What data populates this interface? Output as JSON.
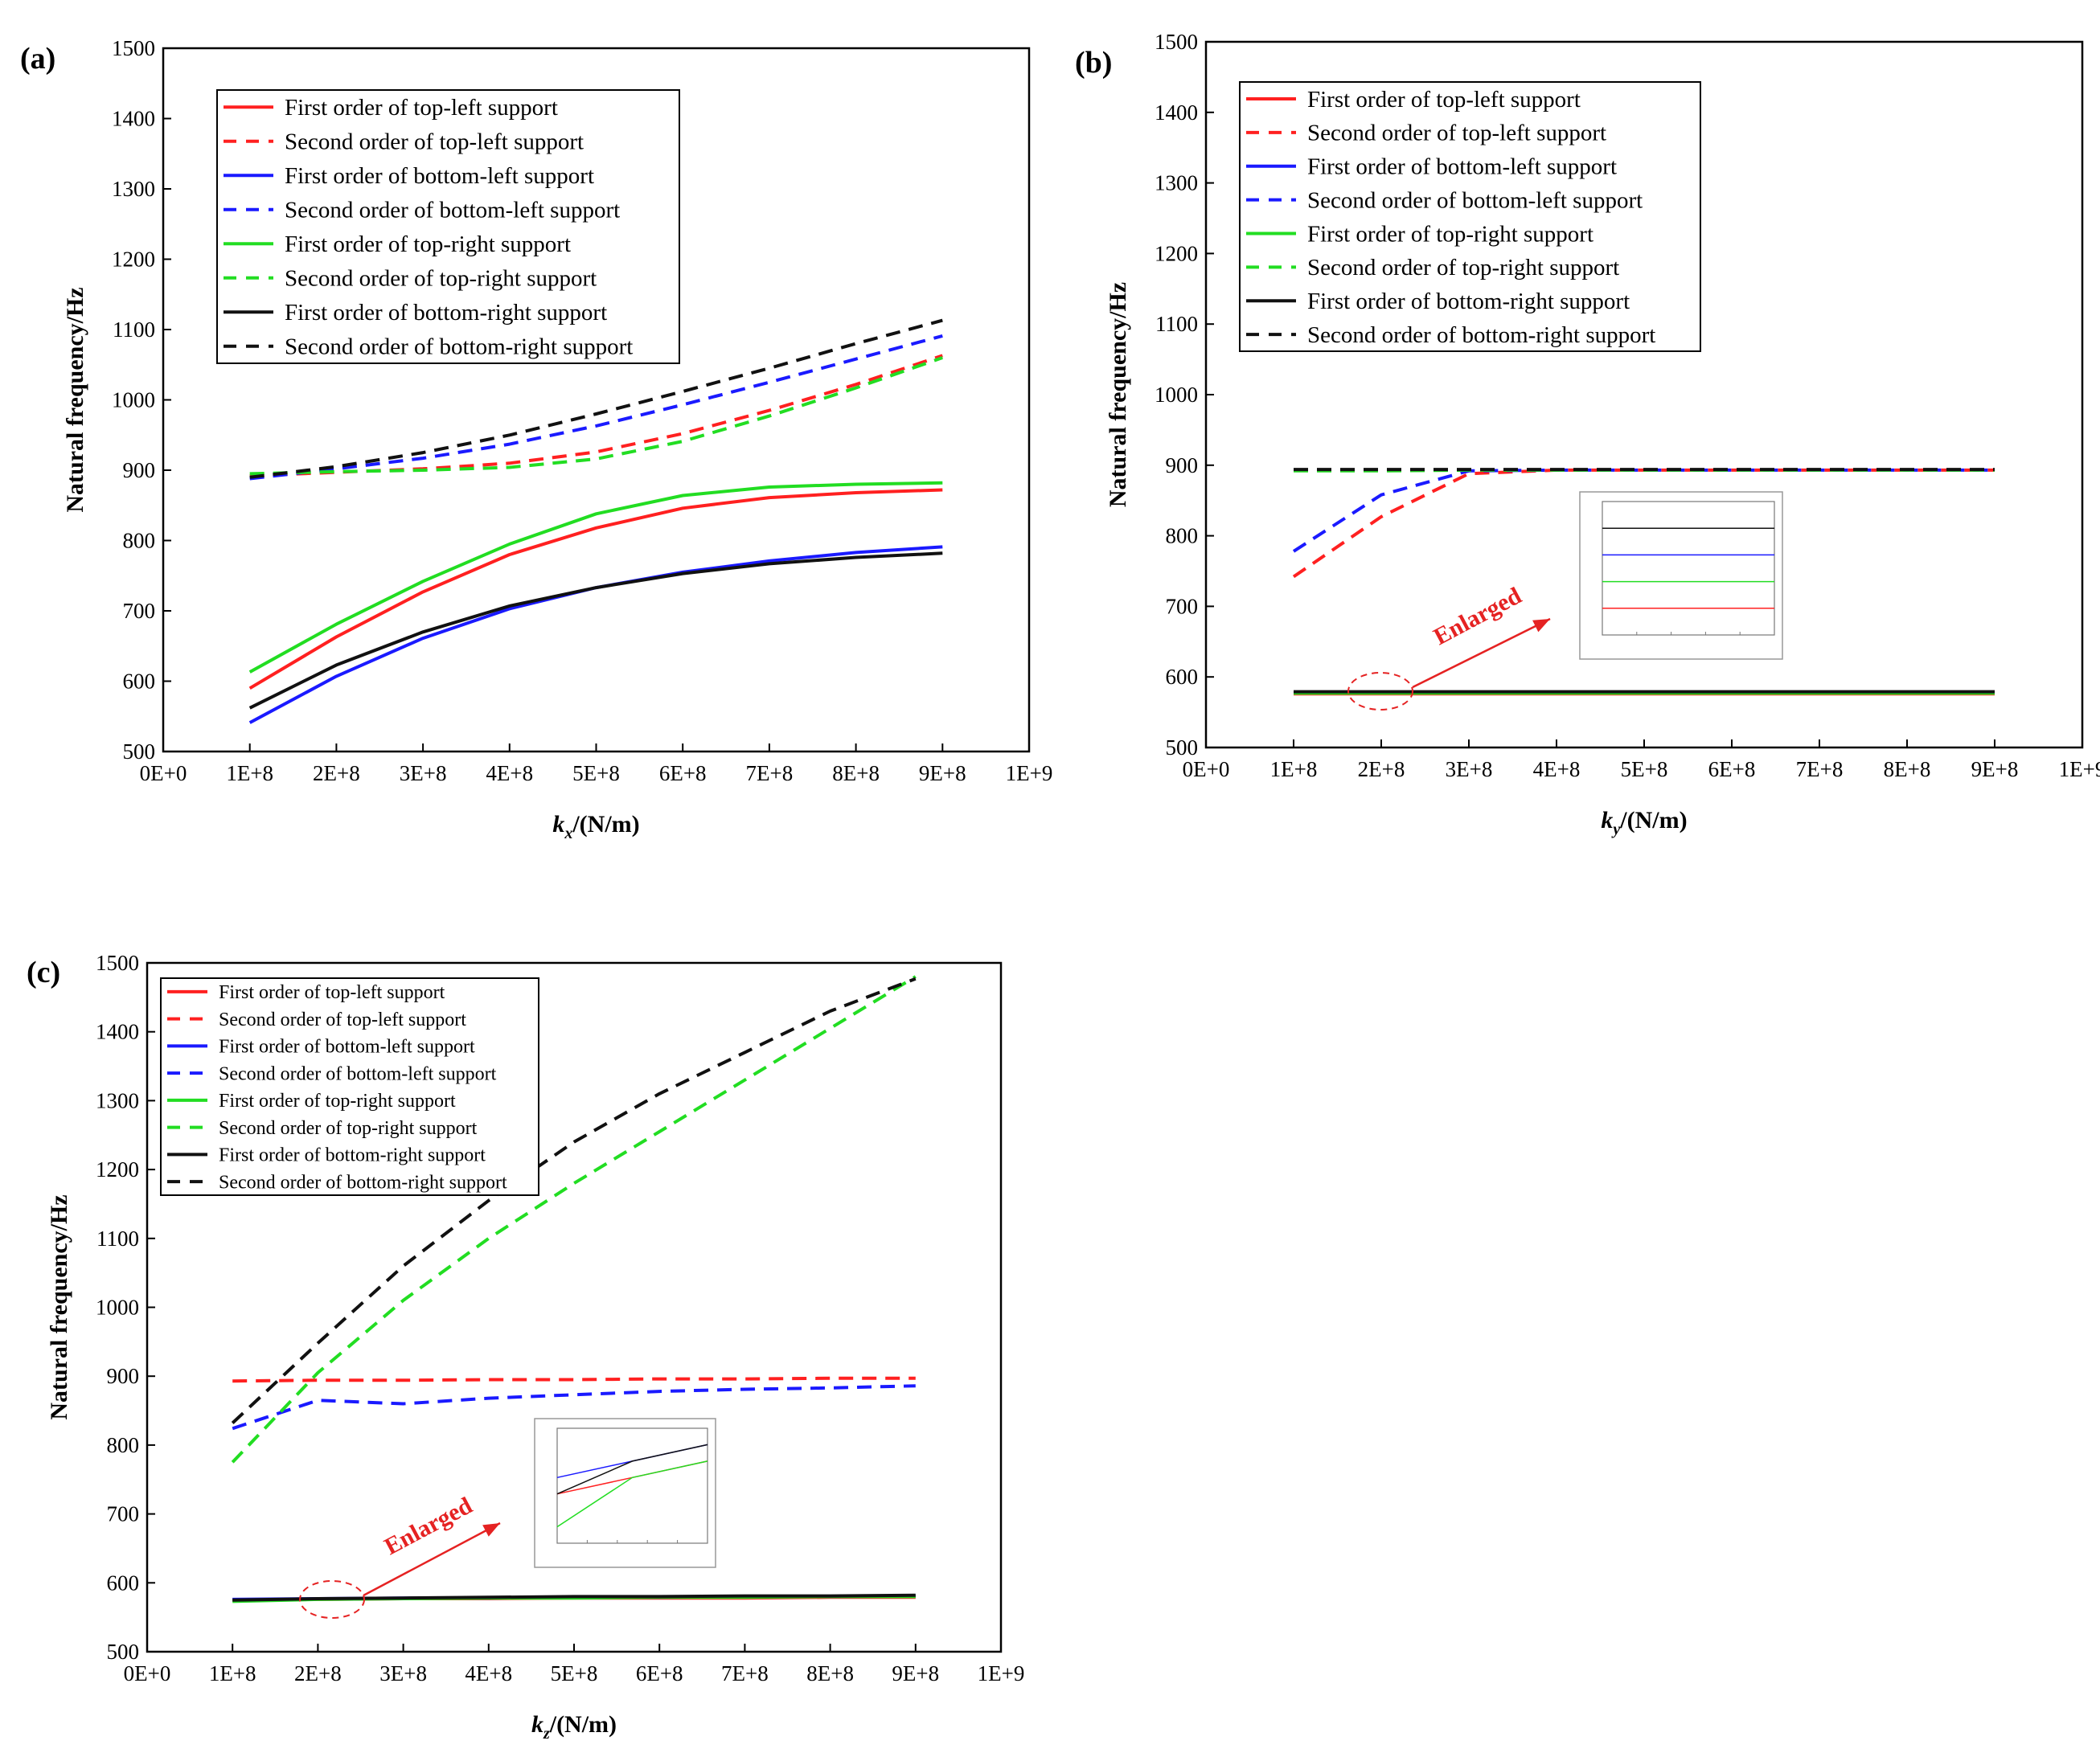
{
  "colors": {
    "red": "#ff2020",
    "blue": "#1a1aff",
    "green": "#22dd22",
    "black": "#111111",
    "annotation": "#e52222"
  },
  "legend_labels": [
    "First order of top-left support",
    "Second order of top-left support",
    "First order of bottom-left support",
    "Second order of bottom-left support",
    "First order of  top-right support",
    "Second order of  top-right support",
    "First order of  bottom-right support",
    "Second order of bottom-right support"
  ],
  "chart_data": [
    {
      "type": "line",
      "panel_label": "(a)",
      "ylabel": "Natural frequency/Hz",
      "xlabel_main": "k",
      "xlabel_sub": "x",
      "xlabel_unit": "/(N/m)",
      "xlim": [
        0,
        1000000000
      ],
      "ylim": [
        500,
        1500
      ],
      "xticks": [
        "0E+0",
        "1E+8",
        "2E+8",
        "3E+8",
        "4E+8",
        "5E+8",
        "6E+8",
        "7E+8",
        "8E+8",
        "9E+8",
        "1E+9"
      ],
      "yticks": [
        500,
        600,
        700,
        800,
        900,
        1000,
        1100,
        1200,
        1300,
        1400,
        1500
      ],
      "x": [
        100000000,
        200000000,
        300000000,
        400000000,
        500000000,
        600000000,
        700000000,
        800000000,
        900000000
      ],
      "legend_location": "top-left",
      "series": [
        {
          "name": "First order of top-left support",
          "color": "red",
          "dash": false,
          "values": [
            590,
            663,
            727,
            780,
            818,
            846,
            861,
            868,
            872
          ]
        },
        {
          "name": "Second order of top-left support",
          "color": "red",
          "dash": true,
          "values": [
            892,
            897,
            902,
            910,
            926,
            952,
            985,
            1022,
            1063
          ]
        },
        {
          "name": "First order of bottom-left support",
          "color": "blue",
          "dash": false,
          "values": [
            541,
            607,
            661,
            703,
            733,
            755,
            771,
            783,
            791
          ]
        },
        {
          "name": "Second order of bottom-left support",
          "color": "blue",
          "dash": true,
          "values": [
            888,
            902,
            917,
            937,
            963,
            993,
            1025,
            1058,
            1091
          ]
        },
        {
          "name": "First order of  top-right support",
          "color": "green",
          "dash": false,
          "values": [
            613,
            681,
            742,
            795,
            838,
            864,
            876,
            880,
            882
          ]
        },
        {
          "name": "Second order of  top-right support",
          "color": "green",
          "dash": true,
          "values": [
            895,
            898,
            900,
            904,
            916,
            941,
            977,
            1017,
            1060
          ]
        },
        {
          "name": "First order of  bottom-right support",
          "color": "black",
          "dash": false,
          "values": [
            562,
            623,
            670,
            707,
            733,
            753,
            767,
            776,
            782
          ]
        },
        {
          "name": "Second order of bottom-right support",
          "color": "black",
          "dash": true,
          "values": [
            890,
            905,
            925,
            950,
            980,
            1012,
            1045,
            1080,
            1113
          ]
        }
      ]
    },
    {
      "type": "line",
      "panel_label": "(b)",
      "ylabel": "Natural frequency/Hz",
      "xlabel_main": "k",
      "xlabel_sub": "y",
      "xlabel_unit": "/(N/m)",
      "xlim": [
        0,
        1000000000
      ],
      "ylim": [
        500,
        1500
      ],
      "xticks": [
        "0E+0",
        "1E+8",
        "2E+8",
        "3E+8",
        "4E+8",
        "5E+8",
        "6E+8",
        "7E+8",
        "8E+8",
        "9E+8",
        "1E+9"
      ],
      "yticks": [
        500,
        600,
        700,
        800,
        900,
        1000,
        1100,
        1200,
        1300,
        1400,
        1500
      ],
      "x": [
        100000000,
        200000000,
        300000000,
        400000000,
        500000000,
        600000000,
        700000000,
        800000000,
        900000000
      ],
      "legend_location": "top-left",
      "annotation": "Enlarged",
      "series": [
        {
          "name": "First order of top-left support",
          "color": "red",
          "dash": false,
          "values": [
            576,
            576,
            576,
            576,
            576,
            576,
            576,
            576,
            576
          ]
        },
        {
          "name": "Second order of top-left support",
          "color": "red",
          "dash": true,
          "values": [
            742,
            827,
            888,
            893,
            893,
            893,
            893,
            893,
            893
          ]
        },
        {
          "name": "First order of bottom-left support",
          "color": "blue",
          "dash": false,
          "values": [
            578,
            578,
            578,
            578,
            578,
            578,
            578,
            578,
            578
          ]
        },
        {
          "name": "Second order of bottom-left support",
          "color": "blue",
          "dash": true,
          "values": [
            778,
            858,
            892,
            893,
            893,
            893,
            893,
            893,
            893
          ]
        },
        {
          "name": "First order of  top-right support",
          "color": "green",
          "dash": false,
          "values": [
            577,
            577,
            577,
            577,
            577,
            577,
            577,
            577,
            577
          ]
        },
        {
          "name": "Second order of  top-right support",
          "color": "green",
          "dash": true,
          "values": [
            892,
            892,
            893,
            893,
            893,
            893,
            893,
            893,
            893
          ]
        },
        {
          "name": "First order of  bottom-right support",
          "color": "black",
          "dash": false,
          "values": [
            579,
            579,
            579,
            579,
            579,
            579,
            579,
            579,
            579
          ]
        },
        {
          "name": "Second order of bottom-right support",
          "color": "black",
          "dash": true,
          "values": [
            894,
            894,
            894,
            894,
            894,
            894,
            894,
            894,
            894
          ]
        }
      ]
    },
    {
      "type": "line",
      "panel_label": "(c)",
      "ylabel": "Natural frequency/Hz",
      "xlabel_main": "k",
      "xlabel_sub": "z",
      "xlabel_unit": "/(N/m)",
      "xlim": [
        0,
        1000000000
      ],
      "ylim": [
        500,
        1500
      ],
      "xticks": [
        "0E+0",
        "1E+8",
        "2E+8",
        "3E+8",
        "4E+8",
        "5E+8",
        "6E+8",
        "7E+8",
        "8E+8",
        "9E+8",
        "1E+9"
      ],
      "yticks": [
        500,
        600,
        700,
        800,
        900,
        1000,
        1100,
        1200,
        1300,
        1400,
        1500
      ],
      "x": [
        100000000,
        200000000,
        300000000,
        400000000,
        500000000,
        600000000,
        700000000,
        800000000,
        900000000
      ],
      "legend_location": "top-left",
      "annotation": "Enlarged",
      "series": [
        {
          "name": "First order of top-left support",
          "color": "red",
          "dash": false,
          "values": [
            575,
            576,
            577,
            577,
            578,
            578,
            578,
            579,
            579
          ]
        },
        {
          "name": "Second order of top-left support",
          "color": "red",
          "dash": true,
          "values": [
            893,
            894,
            894,
            895,
            895,
            896,
            896,
            897,
            897
          ]
        },
        {
          "name": "First order of bottom-left support",
          "color": "blue",
          "dash": false,
          "values": [
            576,
            577,
            578,
            578,
            579,
            579,
            580,
            580,
            581
          ]
        },
        {
          "name": "Second order of bottom-left support",
          "color": "blue",
          "dash": true,
          "values": [
            824,
            865,
            860,
            868,
            873,
            878,
            881,
            883,
            886
          ]
        },
        {
          "name": "First order of  top-right support",
          "color": "green",
          "dash": false,
          "values": [
            573,
            576,
            577,
            578,
            578,
            579,
            579,
            580,
            580
          ]
        },
        {
          "name": "Second order of  top-right support",
          "color": "green",
          "dash": true,
          "values": [
            775,
            905,
            1010,
            1100,
            1180,
            1255,
            1330,
            1405,
            1480
          ]
        },
        {
          "name": "First order of  bottom-right support",
          "color": "black",
          "dash": false,
          "values": [
            575,
            577,
            578,
            579,
            580,
            580,
            581,
            581,
            582
          ]
        },
        {
          "name": "Second order of bottom-right support",
          "color": "black",
          "dash": true,
          "values": [
            832,
            948,
            1060,
            1155,
            1240,
            1310,
            1370,
            1430,
            1477
          ]
        }
      ]
    }
  ]
}
